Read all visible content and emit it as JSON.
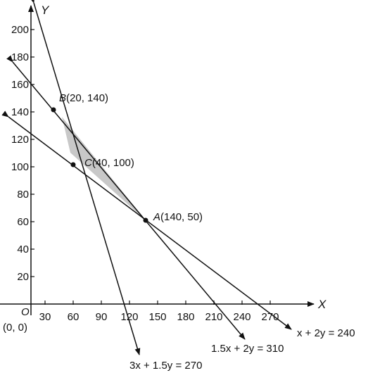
{
  "axes": {
    "x_name": "X",
    "y_name": "Y",
    "origin_letter": "O",
    "origin_coords": "(0, 0)",
    "x_ticks": [
      {
        "value": 30,
        "label": "30"
      },
      {
        "value": 60,
        "label": "60"
      },
      {
        "value": 90,
        "label": "90"
      },
      {
        "value": 120,
        "label": "120"
      },
      {
        "value": 150,
        "label": "150"
      },
      {
        "value": 180,
        "label": "180"
      },
      {
        "value": 210,
        "label": "210"
      },
      {
        "value": 240,
        "label": "240"
      },
      {
        "value": 270,
        "label": "270"
      }
    ],
    "y_ticks": [
      {
        "value": 20,
        "label": "20"
      },
      {
        "value": 40,
        "label": "40"
      },
      {
        "value": 60,
        "label": "60"
      },
      {
        "value": 80,
        "label": "80"
      },
      {
        "value": 100,
        "label": "100"
      },
      {
        "value": 120,
        "label": "120"
      },
      {
        "value": 140,
        "label": "140"
      },
      {
        "value": 160,
        "label": "160"
      },
      {
        "value": 180,
        "label": "180"
      },
      {
        "value": 200,
        "label": "200"
      }
    ]
  },
  "points": [
    {
      "id": "B",
      "letter": "B",
      "coords": "(20, 140)",
      "x": 20,
      "y": 140
    },
    {
      "id": "C",
      "letter": "C",
      "coords": "(40, 100)",
      "x": 40,
      "y": 100
    },
    {
      "id": "A",
      "letter": "A",
      "coords": "(140, 50)",
      "x": 140,
      "y": 50
    }
  ],
  "lines": [
    {
      "id": "line-3x-1-5y",
      "eq_label": "3x + 1.5y = 270",
      "a": 3,
      "b": 1.5,
      "c": 270
    },
    {
      "id": "line-1-5x-2y",
      "eq_label": "1.5x + 2y = 310",
      "a": 1.5,
      "b": 2,
      "c": 310
    },
    {
      "id": "line-x-2y",
      "eq_label": "x + 2y = 240",
      "a": 1,
      "b": 2,
      "c": 240
    }
  ],
  "feasible_region": {
    "vertices": [
      "B",
      "A",
      "C"
    ],
    "fill_color": "#c8c8c8"
  },
  "colors": {
    "ink": "#111111",
    "shade": "#c8c8c8"
  }
}
